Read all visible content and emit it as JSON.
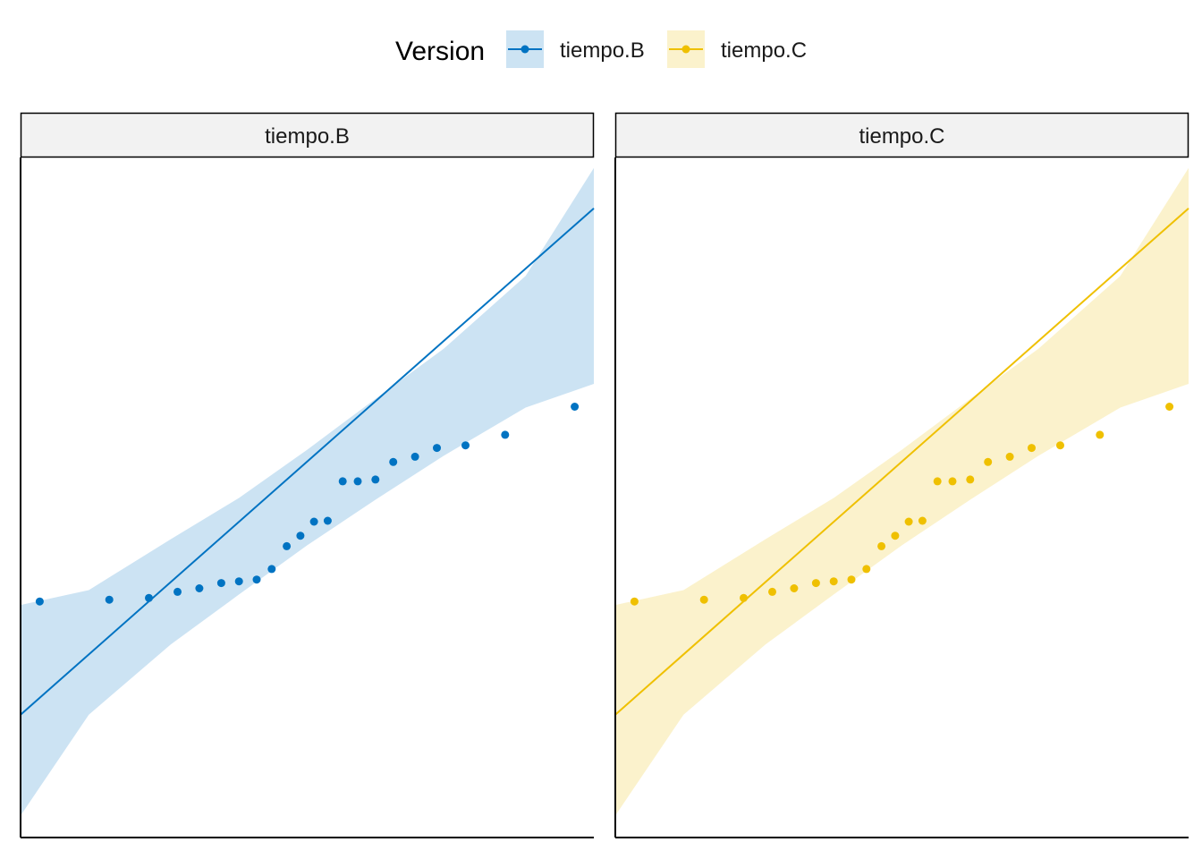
{
  "legend": {
    "title": "Version",
    "entries": [
      {
        "key": "B",
        "label": "tiempo.B"
      },
      {
        "key": "C",
        "label": "tiempo.C"
      }
    ]
  },
  "colors": {
    "B": {
      "line": "#0073C2",
      "band": "#CCE3F3"
    },
    "C": {
      "line": "#EFC000",
      "band": "#FBF2CC"
    }
  },
  "chart_data": {
    "type": "scatter",
    "subtype": "qq-plot with reference line and confidence band",
    "axes_visible": false,
    "xlim": [
      -2.1,
      2.1
    ],
    "ylim": [
      -3.45,
      4.3
    ],
    "panels": [
      {
        "strip": "tiempo.B",
        "series_key": "B",
        "x": [
          -1.96,
          -1.45,
          -1.16,
          -0.95,
          -0.79,
          -0.63,
          -0.5,
          -0.37,
          -0.26,
          -0.15,
          -0.05,
          0.05,
          0.15,
          0.26,
          0.37,
          0.5,
          0.63,
          0.79,
          0.95,
          1.16,
          1.45,
          1.96
        ],
        "y": [
          -0.76,
          -0.74,
          -0.72,
          -0.65,
          -0.61,
          -0.55,
          -0.53,
          -0.51,
          -0.39,
          -0.13,
          -0.01,
          0.15,
          0.16,
          0.61,
          0.61,
          0.63,
          0.83,
          0.89,
          0.99,
          1.02,
          1.14,
          1.46
        ],
        "line": {
          "x": [
            -2.1,
            2.1
          ],
          "y": [
            -2.05,
            3.72
          ]
        },
        "band": {
          "x": [
            -2.1,
            -1.6,
            -1.0,
            -0.5,
            0.0,
            0.5,
            1.0,
            1.6,
            2.1
          ],
          "lower": [
            -3.2,
            -2.05,
            -1.25,
            -0.68,
            -0.12,
            0.4,
            0.9,
            1.45,
            1.72
          ],
          "upper": [
            -0.8,
            -0.63,
            -0.05,
            0.42,
            0.97,
            1.55,
            2.12,
            2.95,
            4.18
          ]
        }
      },
      {
        "strip": "tiempo.C",
        "series_key": "C",
        "x": [
          -1.96,
          -1.45,
          -1.16,
          -0.95,
          -0.79,
          -0.63,
          -0.5,
          -0.37,
          -0.26,
          -0.15,
          -0.05,
          0.05,
          0.15,
          0.26,
          0.37,
          0.5,
          0.63,
          0.79,
          0.95,
          1.16,
          1.45,
          1.96
        ],
        "y": [
          -0.76,
          -0.74,
          -0.72,
          -0.65,
          -0.61,
          -0.55,
          -0.53,
          -0.51,
          -0.39,
          -0.13,
          -0.01,
          0.15,
          0.16,
          0.61,
          0.61,
          0.63,
          0.83,
          0.89,
          0.99,
          1.02,
          1.14,
          1.46
        ],
        "line": {
          "x": [
            -2.1,
            2.1
          ],
          "y": [
            -2.05,
            3.72
          ]
        },
        "band": {
          "x": [
            -2.1,
            -1.6,
            -1.0,
            -0.5,
            0.0,
            0.5,
            1.0,
            1.6,
            2.1
          ],
          "lower": [
            -3.2,
            -2.05,
            -1.25,
            -0.68,
            -0.12,
            0.4,
            0.9,
            1.45,
            1.72
          ],
          "upper": [
            -0.8,
            -0.63,
            -0.05,
            0.42,
            0.97,
            1.55,
            2.12,
            2.95,
            4.18
          ]
        }
      }
    ]
  }
}
